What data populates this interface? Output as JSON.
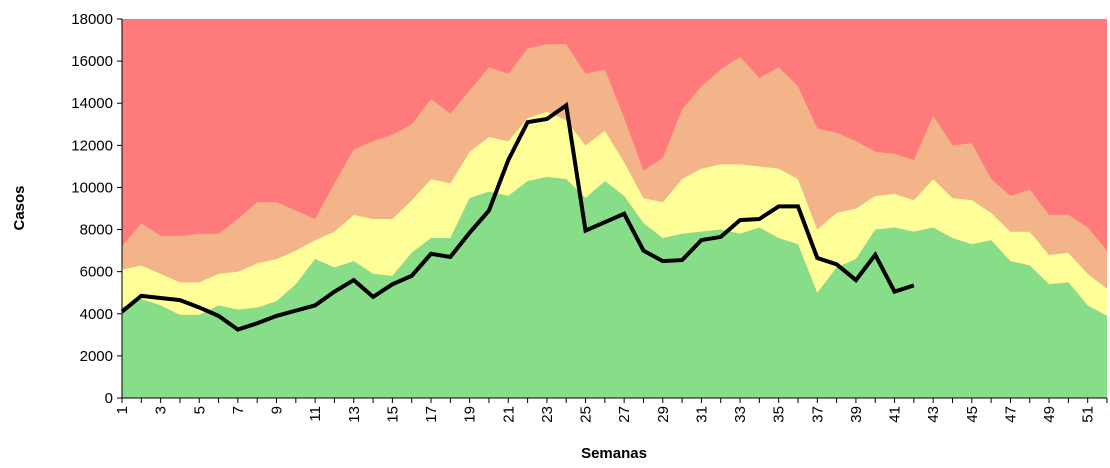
{
  "chart_data": {
    "type": "stacked-area-line",
    "x_label": "Semanas",
    "y_label": "Casos",
    "categories": [
      1,
      null,
      3,
      null,
      5,
      null,
      7,
      null,
      9,
      null,
      11,
      null,
      13,
      null,
      15,
      null,
      17,
      null,
      19,
      null,
      21,
      null,
      23,
      null,
      25,
      null,
      27,
      null,
      29,
      null,
      31,
      null,
      33,
      null,
      35,
      null,
      37,
      null,
      39,
      null,
      41,
      null,
      43,
      null,
      45,
      null,
      47,
      null,
      49,
      null,
      51,
      null
    ],
    "ylim": [
      0,
      18000
    ],
    "yticks": [
      0,
      2000,
      4000,
      6000,
      8000,
      10000,
      12000,
      14000,
      16000,
      18000
    ],
    "plot_background": "#ff7b7b",
    "series": [
      {
        "type": "area",
        "color": "#88dd88",
        "values": [
          4300,
          4700,
          4400,
          3950,
          3950,
          4400,
          4200,
          4300,
          4600,
          5400,
          6600,
          6200,
          6500,
          5900,
          5800,
          6900,
          7600,
          7600,
          9500,
          9800,
          9600,
          10300,
          10500,
          10400,
          9500,
          10300,
          9600,
          8300,
          7600,
          7800,
          7900,
          8000,
          7800,
          8100,
          7600,
          7300,
          5000,
          6200,
          6600,
          8000,
          8100,
          7900,
          8100,
          7600,
          7300,
          7500,
          6500,
          6300,
          5400,
          5500,
          4400,
          3900
        ]
      },
      {
        "type": "area",
        "color": "#ffff99",
        "values": [
          1800,
          1600,
          1500,
          1550,
          1550,
          1500,
          1800,
          2100,
          2000,
          1600,
          900,
          1700,
          2200,
          2600,
          2700,
          2500,
          2800,
          2600,
          2200,
          2600,
          2600,
          3000,
          3100,
          2800,
          2500,
          2400,
          1600,
          1200,
          1700,
          2600,
          3000,
          3100,
          3300,
          2900,
          3300,
          3100,
          3000,
          2600,
          2400,
          1600,
          1600,
          1500,
          2300,
          1900,
          2100,
          1300,
          1400,
          1600,
          1400,
          1400,
          1500,
          1300
        ]
      },
      {
        "type": "area",
        "color": "#f4b48a",
        "values": [
          1100,
          2000,
          1800,
          2200,
          2300,
          1900,
          2500,
          2900,
          2700,
          1900,
          1000,
          2300,
          3100,
          3700,
          4000,
          3600,
          3800,
          3300,
          2900,
          3300,
          3200,
          3300,
          3200,
          3600,
          3400,
          2900,
          2100,
          1300,
          2100,
          3300,
          3900,
          4500,
          5100,
          4200,
          4800,
          4400,
          4800,
          3800,
          3200,
          2100,
          1900,
          1900,
          3000,
          2500,
          2700,
          1600,
          1700,
          2000,
          1900,
          1800,
          2200,
          1800
        ]
      },
      {
        "type": "line",
        "color": "#000000",
        "values": [
          4100,
          4850,
          4750,
          4650,
          4300,
          3900,
          3250,
          3550,
          3900,
          4150,
          4400,
          5050,
          5600,
          4800,
          5400,
          5800,
          6850,
          6700,
          7850,
          8900,
          11300,
          13100,
          13250,
          13900,
          7950,
          8350,
          8750,
          7000,
          6500,
          6550,
          7500,
          7650,
          8450,
          8500,
          9100,
          9100,
          6650,
          6350,
          5600,
          6800,
          5050,
          5350,
          null,
          null,
          null,
          null,
          null,
          null,
          null,
          null,
          null,
          null
        ]
      }
    ]
  }
}
